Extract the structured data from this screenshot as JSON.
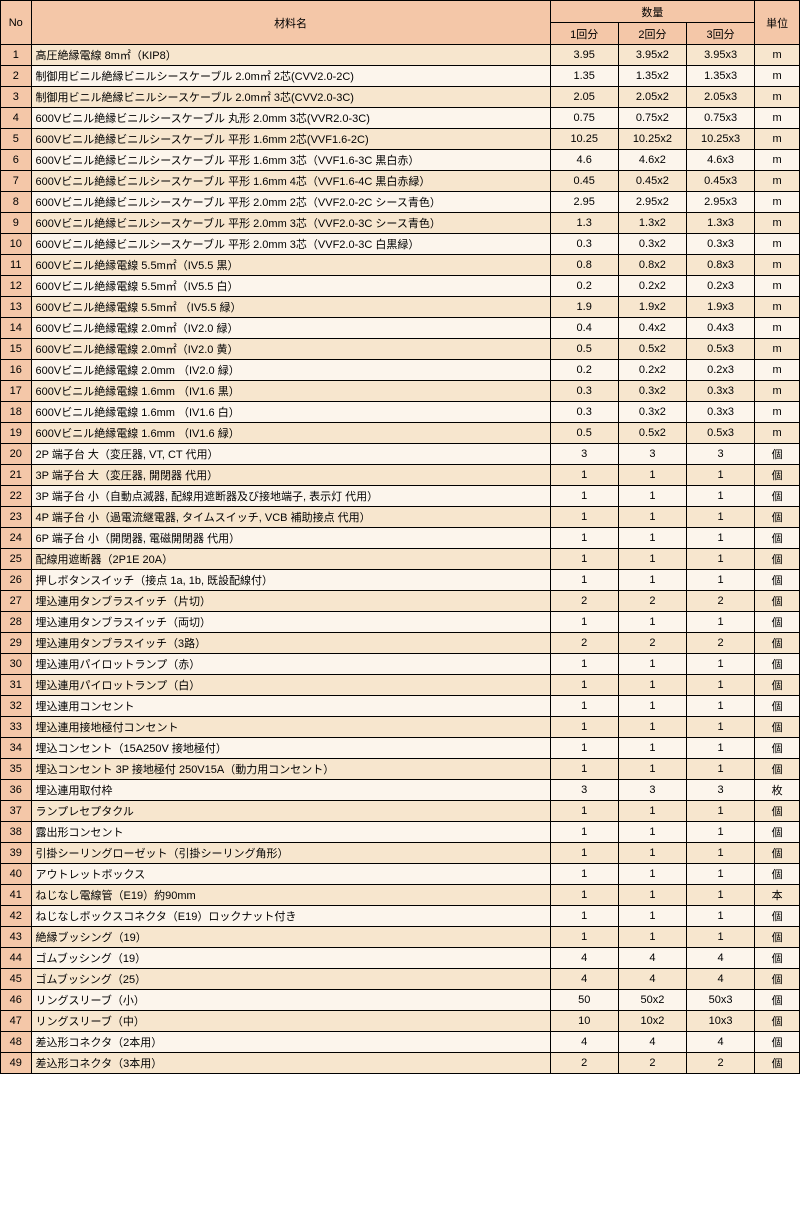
{
  "headers": {
    "no": "No",
    "name": "材料名",
    "qty_group": "数量",
    "qty1": "1回分",
    "qty2": "2回分",
    "qty3": "3回分",
    "unit": "単位"
  },
  "rows": [
    {
      "no": "1",
      "name": "高圧絶縁電線 8m㎡（KIP8）",
      "q1": "3.95",
      "q2": "3.95x2",
      "q3": "3.95x3",
      "unit": "m"
    },
    {
      "no": "2",
      "name": "制御用ビニル絶縁ビニルシースケーブル 2.0m㎡ 2芯(CVV2.0-2C)",
      "q1": "1.35",
      "q2": "1.35x2",
      "q3": "1.35x3",
      "unit": "m"
    },
    {
      "no": "3",
      "name": "制御用ビニル絶縁ビニルシースケーブル 2.0m㎡ 3芯(CVV2.0-3C)",
      "q1": "2.05",
      "q2": "2.05x2",
      "q3": "2.05x3",
      "unit": "m"
    },
    {
      "no": "4",
      "name": "600Vビニル絶縁ビニルシースケーブル 丸形 2.0mm 3芯(VVR2.0-3C)",
      "q1": "0.75",
      "q2": "0.75x2",
      "q3": "0.75x3",
      "unit": "m"
    },
    {
      "no": "5",
      "name": "600Vビニル絶縁ビニルシースケーブル 平形 1.6mm 2芯(VVF1.6-2C)",
      "q1": "10.25",
      "q2": "10.25x2",
      "q3": "10.25x3",
      "unit": "m"
    },
    {
      "no": "6",
      "name": "600Vビニル絶縁ビニルシースケーブル 平形 1.6mm 3芯（VVF1.6-3C 黒白赤）",
      "q1": "4.6",
      "q2": "4.6x2",
      "q3": "4.6x3",
      "unit": "m"
    },
    {
      "no": "7",
      "name": "600Vビニル絶縁ビニルシースケーブル 平形 1.6mm 4芯（VVF1.6-4C 黒白赤緑）",
      "q1": "0.45",
      "q2": "0.45x2",
      "q3": "0.45x3",
      "unit": "m"
    },
    {
      "no": "8",
      "name": "600Vビニル絶縁ビニルシースケーブル 平形 2.0mm 2芯（VVF2.0-2C シース青色）",
      "q1": "2.95",
      "q2": "2.95x2",
      "q3": "2.95x3",
      "unit": "m"
    },
    {
      "no": "9",
      "name": "600Vビニル絶縁ビニルシースケーブル 平形 2.0mm 3芯（VVF2.0-3C シース青色）",
      "q1": "1.3",
      "q2": "1.3x2",
      "q3": "1.3x3",
      "unit": "m"
    },
    {
      "no": "10",
      "name": "600Vビニル絶縁ビニルシースケーブル 平形 2.0mm 3芯（VVF2.0-3C 白黒緑）",
      "q1": "0.3",
      "q2": "0.3x2",
      "q3": "0.3x3",
      "unit": "m"
    },
    {
      "no": "11",
      "name": "600Vビニル絶縁電線 5.5m㎡（IV5.5 黒）",
      "q1": "0.8",
      "q2": "0.8x2",
      "q3": "0.8x3",
      "unit": "m"
    },
    {
      "no": "12",
      "name": "600Vビニル絶縁電線 5.5m㎡（IV5.5 白）",
      "q1": "0.2",
      "q2": "0.2x2",
      "q3": "0.2x3",
      "unit": "m"
    },
    {
      "no": "13",
      "name": "600Vビニル絶縁電線 5.5m㎡ （IV5.5 緑）",
      "q1": "1.9",
      "q2": "1.9x2",
      "q3": "1.9x3",
      "unit": "m"
    },
    {
      "no": "14",
      "name": "600Vビニル絶縁電線 2.0m㎡（IV2.0 緑）",
      "q1": "0.4",
      "q2": "0.4x2",
      "q3": "0.4x3",
      "unit": "m"
    },
    {
      "no": "15",
      "name": "600Vビニル絶縁電線 2.0m㎡（IV2.0 黄）",
      "q1": "0.5",
      "q2": "0.5x2",
      "q3": "0.5x3",
      "unit": "m"
    },
    {
      "no": "16",
      "name": "600Vビニル絶縁電線 2.0mm （IV2.0 緑）",
      "q1": "0.2",
      "q2": "0.2x2",
      "q3": "0.2x3",
      "unit": "m"
    },
    {
      "no": "17",
      "name": "600Vビニル絶縁電線 1.6mm （IV1.6 黒）",
      "q1": "0.3",
      "q2": "0.3x2",
      "q3": "0.3x3",
      "unit": "m"
    },
    {
      "no": "18",
      "name": "600Vビニル絶縁電線 1.6mm （IV1.6 白）",
      "q1": "0.3",
      "q2": "0.3x2",
      "q3": "0.3x3",
      "unit": "m"
    },
    {
      "no": "19",
      "name": "600Vビニル絶縁電線 1.6mm （IV1.6 緑）",
      "q1": "0.5",
      "q2": "0.5x2",
      "q3": "0.5x3",
      "unit": "m"
    },
    {
      "no": "20",
      "name": "2P 端子台 大（変圧器, VT, CT 代用）",
      "q1": "3",
      "q2": "3",
      "q3": "3",
      "unit": "個"
    },
    {
      "no": "21",
      "name": "3P 端子台 大（変圧器, 開閉器 代用）",
      "q1": "1",
      "q2": "1",
      "q3": "1",
      "unit": "個"
    },
    {
      "no": "22",
      "name": "3P 端子台 小（自動点滅器, 配線用遮断器及び接地端子, 表示灯 代用）",
      "q1": "1",
      "q2": "1",
      "q3": "1",
      "unit": "個"
    },
    {
      "no": "23",
      "name": "4P 端子台 小（過電流継電器, タイムスイッチ, VCB 補助接点 代用）",
      "q1": "1",
      "q2": "1",
      "q3": "1",
      "unit": "個"
    },
    {
      "no": "24",
      "name": "6P 端子台 小（開閉器, 電磁開閉器 代用）",
      "q1": "1",
      "q2": "1",
      "q3": "1",
      "unit": "個"
    },
    {
      "no": "25",
      "name": "配線用遮断器（2P1E 20A）",
      "q1": "1",
      "q2": "1",
      "q3": "1",
      "unit": "個"
    },
    {
      "no": "26",
      "name": "押しボタンスイッチ（接点 1a, 1b, 既設配線付）",
      "q1": "1",
      "q2": "1",
      "q3": "1",
      "unit": "個"
    },
    {
      "no": "27",
      "name": "埋込連用タンブラスイッチ（片切）",
      "q1": "2",
      "q2": "2",
      "q3": "2",
      "unit": "個"
    },
    {
      "no": "28",
      "name": "埋込連用タンブラスイッチ（両切）",
      "q1": "1",
      "q2": "1",
      "q3": "1",
      "unit": "個"
    },
    {
      "no": "29",
      "name": "埋込連用タンブラスイッチ（3路）",
      "q1": "2",
      "q2": "2",
      "q3": "2",
      "unit": "個"
    },
    {
      "no": "30",
      "name": "埋込連用パイロットランプ（赤）",
      "q1": "1",
      "q2": "1",
      "q3": "1",
      "unit": "個"
    },
    {
      "no": "31",
      "name": "埋込連用パイロットランプ（白）",
      "q1": "1",
      "q2": "1",
      "q3": "1",
      "unit": "個"
    },
    {
      "no": "32",
      "name": "埋込連用コンセント",
      "q1": "1",
      "q2": "1",
      "q3": "1",
      "unit": "個"
    },
    {
      "no": "33",
      "name": "埋込連用接地極付コンセント",
      "q1": "1",
      "q2": "1",
      "q3": "1",
      "unit": "個"
    },
    {
      "no": "34",
      "name": "埋込コンセント（15A250V 接地極付）",
      "q1": "1",
      "q2": "1",
      "q3": "1",
      "unit": "個"
    },
    {
      "no": "35",
      "name": "埋込コンセント 3P 接地極付 250V15A（動力用コンセント）",
      "q1": "1",
      "q2": "1",
      "q3": "1",
      "unit": "個"
    },
    {
      "no": "36",
      "name": "埋込連用取付枠",
      "q1": "3",
      "q2": "3",
      "q3": "3",
      "unit": "枚"
    },
    {
      "no": "37",
      "name": "ランプレセプタクル",
      "q1": "1",
      "q2": "1",
      "q3": "1",
      "unit": "個"
    },
    {
      "no": "38",
      "name": "露出形コンセント",
      "q1": "1",
      "q2": "1",
      "q3": "1",
      "unit": "個"
    },
    {
      "no": "39",
      "name": "引掛シーリングローゼット（引掛シーリング角形）",
      "q1": "1",
      "q2": "1",
      "q3": "1",
      "unit": "個"
    },
    {
      "no": "40",
      "name": "アウトレットボックス",
      "q1": "1",
      "q2": "1",
      "q3": "1",
      "unit": "個"
    },
    {
      "no": "41",
      "name": "ねじなし電線管（E19）約90mm",
      "q1": "1",
      "q2": "1",
      "q3": "1",
      "unit": "本"
    },
    {
      "no": "42",
      "name": "ねじなしボックスコネクタ（E19）ロックナット付き",
      "q1": "1",
      "q2": "1",
      "q3": "1",
      "unit": "個"
    },
    {
      "no": "43",
      "name": "絶縁ブッシング（19）",
      "q1": "1",
      "q2": "1",
      "q3": "1",
      "unit": "個"
    },
    {
      "no": "44",
      "name": "ゴムブッシング（19）",
      "q1": "4",
      "q2": "4",
      "q3": "4",
      "unit": "個"
    },
    {
      "no": "45",
      "name": "ゴムブッシング（25）",
      "q1": "4",
      "q2": "4",
      "q3": "4",
      "unit": "個"
    },
    {
      "no": "46",
      "name": "リングスリーブ（小）",
      "q1": "50",
      "q2": "50x2",
      "q3": "50x3",
      "unit": "個"
    },
    {
      "no": "47",
      "name": "リングスリーブ（中）",
      "q1": "10",
      "q2": "10x2",
      "q3": "10x3",
      "unit": "個"
    },
    {
      "no": "48",
      "name": "差込形コネクタ（2本用）",
      "q1": "4",
      "q2": "4",
      "q3": "4",
      "unit": "個"
    },
    {
      "no": "49",
      "name": "差込形コネクタ（3本用）",
      "q1": "2",
      "q2": "2",
      "q3": "2",
      "unit": "個"
    }
  ]
}
